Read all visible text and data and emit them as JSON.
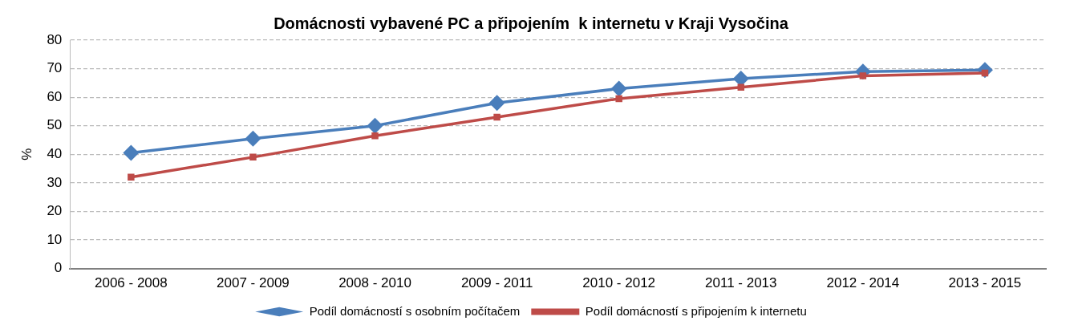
{
  "chart_data": {
    "type": "line",
    "title": "Domácnosti vybavené PC a připojením  k internetu v Kraji Vysočina",
    "ylabel": "%",
    "categories": [
      "2006 - 2008",
      "2007 - 2009",
      "2008 - 2010",
      "2009 - 2011",
      "2010 - 2012",
      "2011 - 2013",
      "2012 - 2014",
      "2013 - 2015"
    ],
    "series": [
      {
        "name": "Podíl domácností s osobním počítačem",
        "color": "#4a7ebb",
        "marker": "diamond",
        "values": [
          40.5,
          45.5,
          50,
          58,
          63,
          66.5,
          69,
          69.5
        ]
      },
      {
        "name": "Podíl domácností s připojením k internetu",
        "color": "#be4b48",
        "marker": "square",
        "values": [
          32,
          39,
          46.5,
          53,
          59.5,
          63.5,
          67.5,
          68.5
        ]
      }
    ],
    "ylim": [
      0,
      80
    ],
    "yticks": [
      0,
      10,
      20,
      30,
      40,
      50,
      60,
      70,
      80
    ],
    "grid": "y",
    "legend": "bottom",
    "line_style": "solid"
  }
}
